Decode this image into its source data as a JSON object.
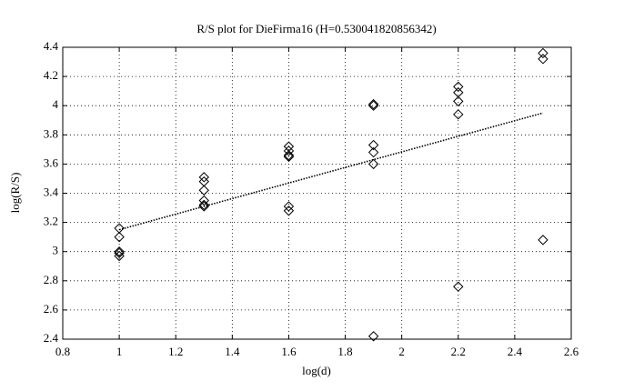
{
  "chart_data": {
    "type": "scatter",
    "title": "R/S plot for DieFirma16 (H=0.530041820856342)",
    "x_label": "log(d)",
    "y_label": "log(R/S)",
    "x": [
      1,
      1,
      1,
      1,
      1,
      1.3,
      1.3,
      1.3,
      1.3,
      1.3,
      1.3,
      1.6,
      1.6,
      1.6,
      1.6,
      1.6,
      1.6,
      1.9,
      1.9,
      1.9,
      1.9,
      1.9,
      1.9,
      2.2,
      2.2,
      2.2,
      2.2,
      2.2,
      2.5,
      2.5,
      2.5
    ],
    "values": [
      3.16,
      3.1,
      3.0,
      2.99,
      2.97,
      3.51,
      3.48,
      3.42,
      3.35,
      3.32,
      3.31,
      3.72,
      3.69,
      3.66,
      3.65,
      3.31,
      3.28,
      4.01,
      4.0,
      3.73,
      3.68,
      3.6,
      2.42,
      4.13,
      4.09,
      4.03,
      3.94,
      2.76,
      4.36,
      4.32,
      3.08
    ],
    "color": "#000000",
    "fit": {
      "x": [
        1,
        2.5
      ],
      "values": [
        3.15,
        3.95
      ],
      "color": "#000000"
    },
    "xlim": [
      0.8,
      2.6
    ],
    "xticks": [
      0.8,
      1,
      1.2,
      1.4,
      1.6,
      1.8,
      2,
      2.2,
      2.4,
      2.6
    ],
    "ylim": [
      2.4,
      4.4
    ],
    "yticks": [
      2.4,
      2.6,
      2.8,
      3,
      3.2,
      3.4,
      3.6,
      3.8,
      4,
      4.2,
      4.4
    ],
    "grid": true
  }
}
